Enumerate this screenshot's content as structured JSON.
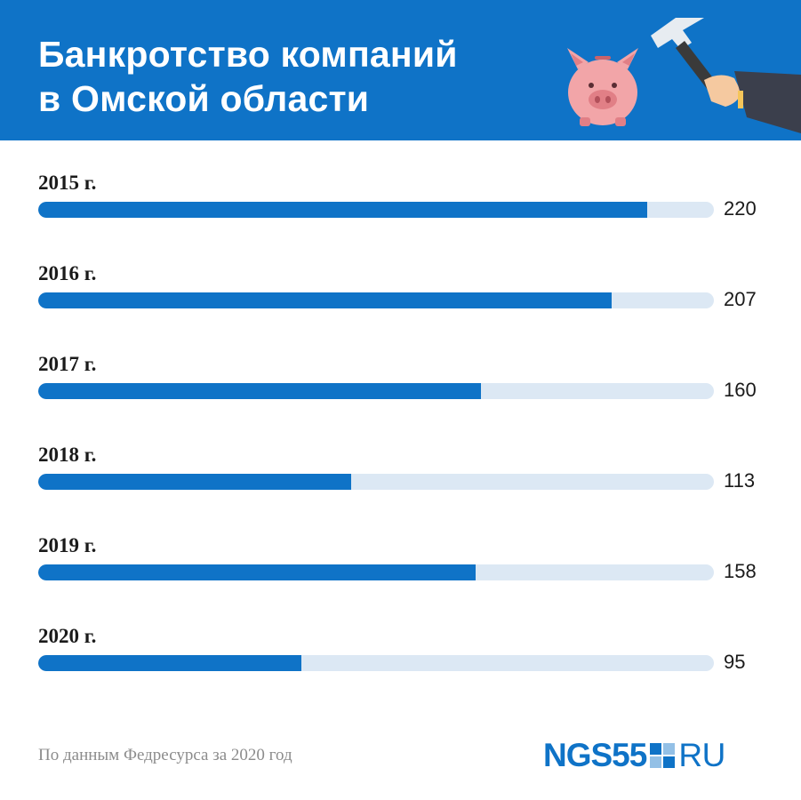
{
  "header": {
    "title_line1": "Банкротство компаний",
    "title_line2": "в Омской области",
    "background_color": "#0f73c7",
    "illustration_icons": [
      "piggy-bank-icon",
      "hammer-icon"
    ]
  },
  "chart_data": {
    "type": "bar",
    "orientation": "horizontal",
    "title": "Банкротство компаний в Омской области",
    "categories": [
      "2015 г.",
      "2016 г.",
      "2017 г.",
      "2018 г.",
      "2019 г.",
      "2020 г."
    ],
    "values": [
      220,
      207,
      160,
      113,
      158,
      95
    ],
    "value_labels": [
      "220",
      "207",
      "160",
      "113",
      "158",
      "95"
    ],
    "xlim": [
      0,
      244
    ],
    "grid": false,
    "bar_color": "#0f73c7",
    "track_color": "#dce8f4"
  },
  "footer": {
    "source": "По данным Федресурса за 2020 год",
    "logo_left": "NGS55",
    "logo_right": "RU",
    "logo_icon": "ngs-square-icon"
  }
}
